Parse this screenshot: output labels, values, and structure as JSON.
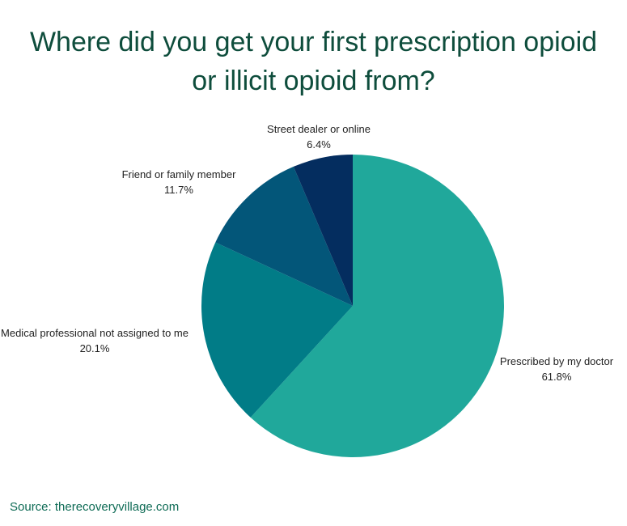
{
  "title_lines": [
    "Where did you get your first prescription opioid",
    "or illicit opioid from?"
  ],
  "source": "Source: therecoveryvillage.com",
  "chart_data": {
    "type": "pie",
    "title": "Where did you get your first prescription opioid or illicit opioid from?",
    "slices": [
      {
        "label": "Prescribed by my doctor",
        "value": 61.8,
        "display": "61.8%",
        "color": "#20a89b"
      },
      {
        "label": "Medical professional not assigned to me",
        "value": 20.1,
        "display": "20.1%",
        "color": "#017c87"
      },
      {
        "label": "Friend or family member",
        "value": 11.7,
        "display": "11.7%",
        "color": "#035679"
      },
      {
        "label": "Street dealer or online",
        "value": 6.4,
        "display": "6.4%",
        "color": "#042d5f"
      }
    ],
    "start": "12 o'clock, clockwise",
    "legend": "none (labels beside slices)"
  }
}
